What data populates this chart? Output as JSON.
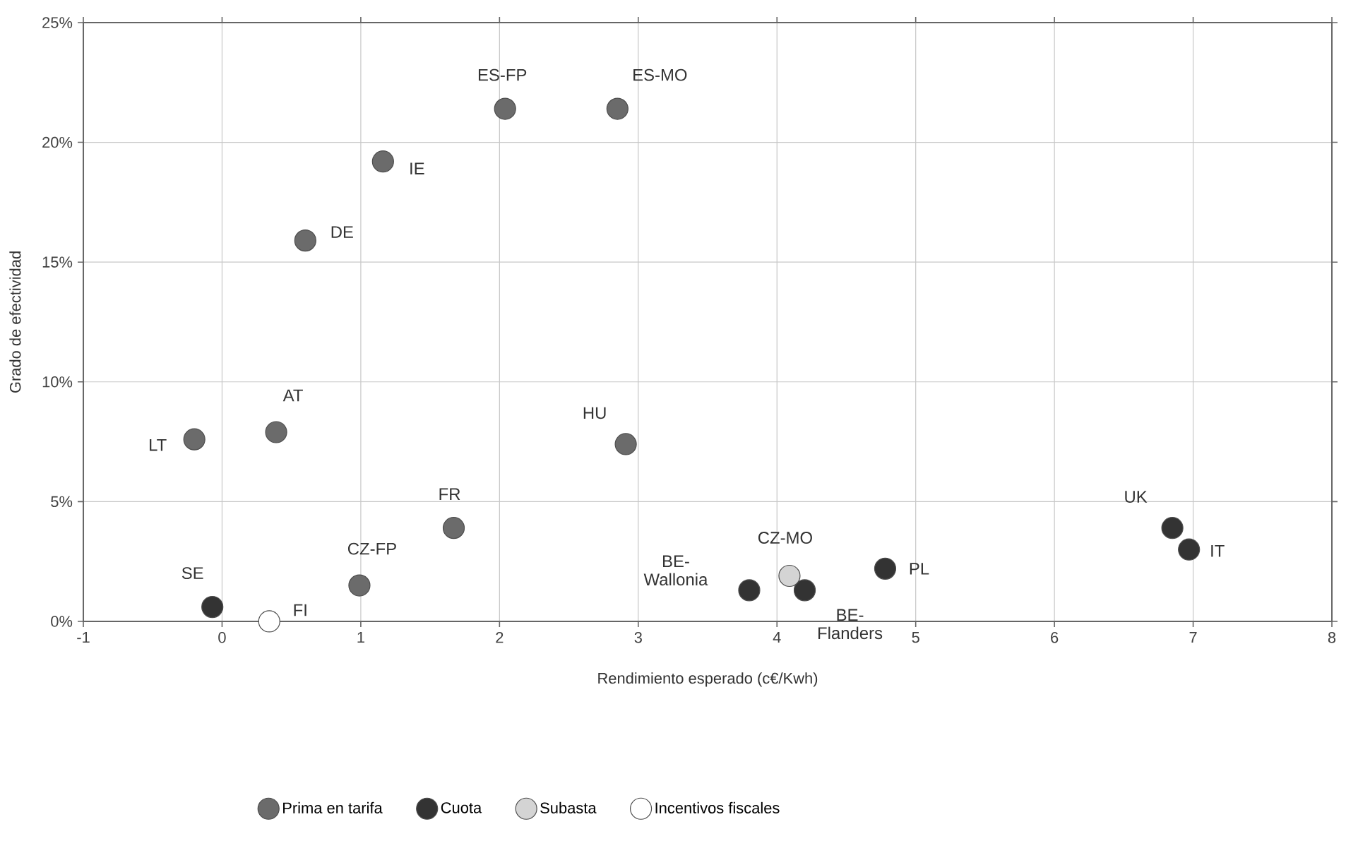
{
  "chart_data": {
    "type": "scatter",
    "xlabel": "Rendimiento esperado (c€/Kwh)",
    "ylabel": "Grado de efectividad",
    "xlim": [
      -1,
      8
    ],
    "xticks": [
      -1,
      0,
      1,
      2,
      3,
      4,
      5,
      6,
      7,
      8
    ],
    "ylim": [
      0,
      25
    ],
    "yticks": [
      {
        "value": 0,
        "label": "0%"
      },
      {
        "value": 5,
        "label": "5%"
      },
      {
        "value": 10,
        "label": "10%"
      },
      {
        "value": 15,
        "label": "15%"
      },
      {
        "value": 20,
        "label": "20%"
      },
      {
        "value": 25,
        "label": "25%"
      }
    ],
    "grid": true,
    "legend": "bottom",
    "marker": "circle",
    "series": [
      {
        "name": "Prima en tarifa",
        "color": "#6b6b6b",
        "x": [
          2.04,
          2.85,
          1.16,
          0.6,
          0.39,
          -0.2,
          2.91,
          1.67,
          0.99
        ],
        "values": [
          21.4,
          21.4,
          19.2,
          15.9,
          7.9,
          7.6,
          7.4,
          3.9,
          1.5
        ]
      },
      {
        "name": "Cuota",
        "color": "#333333",
        "x": [
          -0.07,
          4.78,
          6.85,
          6.97,
          3.8,
          4.2
        ],
        "values": [
          0.6,
          2.2,
          3.9,
          3.0,
          1.3,
          1.3
        ]
      },
      {
        "name": "Subasta",
        "color": "#d4d4d4",
        "x": [
          4.09
        ],
        "values": [
          1.9
        ]
      },
      {
        "name": "Incentivos fiscales",
        "color": "#ffffff",
        "x": [
          0.34
        ],
        "values": [
          0
        ]
      }
    ],
    "annotations": [
      {
        "text": "ES-FP",
        "x": 2.04,
        "y": 21.4
      },
      {
        "text": "ES-MO",
        "x": 2.85,
        "y": 21.4
      },
      {
        "text": "IE",
        "x": 1.16,
        "y": 19.2
      },
      {
        "text": "DE",
        "x": 0.6,
        "y": 15.9
      },
      {
        "text": "AT",
        "x": 0.39,
        "y": 7.9
      },
      {
        "text": "LT",
        "x": -0.2,
        "y": 7.6
      },
      {
        "text": "HU",
        "x": 2.91,
        "y": 7.4
      },
      {
        "text": "FR",
        "x": 1.67,
        "y": 3.9
      },
      {
        "text": "CZ-FP",
        "x": 0.99,
        "y": 1.5
      },
      {
        "text": "SE",
        "x": -0.07,
        "y": 0.6
      },
      {
        "text": "FI",
        "x": 0.34,
        "y": 0
      },
      {
        "text": "PL",
        "x": 4.78,
        "y": 2.2
      },
      {
        "text": "UK",
        "x": 6.85,
        "y": 3.9
      },
      {
        "text": "IT",
        "x": 6.97,
        "y": 3.0
      },
      {
        "text": "CZ-MO",
        "x": 4.09,
        "y": 1.9
      },
      {
        "text": "BE-Wallonia",
        "x": 3.8,
        "y": 1.3
      },
      {
        "text": "BE-Flanders",
        "x": 4.2,
        "y": 1.3
      }
    ]
  }
}
